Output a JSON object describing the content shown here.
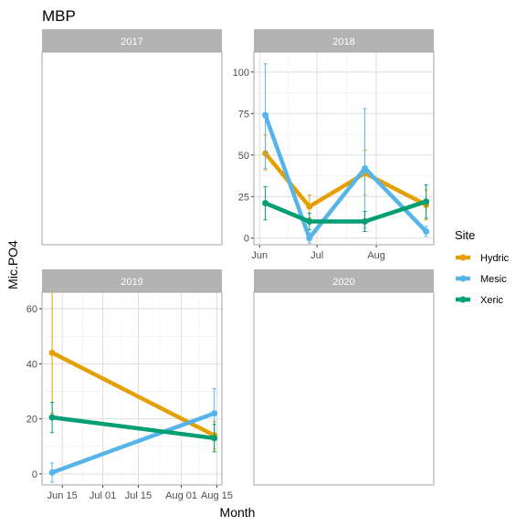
{
  "chart_data": {
    "type": "line",
    "title": "MBP",
    "xlabel": "Month",
    "ylabel": "Mic.PO4",
    "legend": {
      "title": "Site",
      "placement": "right",
      "entries": [
        {
          "name": "Hydric",
          "color": "#E69F00"
        },
        {
          "name": "Mesic",
          "color": "#56B4E9"
        },
        {
          "name": "Xeric",
          "color": "#009E73"
        }
      ]
    },
    "grid": true,
    "facets": [
      {
        "label": "2017",
        "has_axes": false,
        "series": []
      },
      {
        "label": "2018",
        "has_axes": true,
        "x_ticks": [
          {
            "label": "Jun",
            "date": "2018-06-01"
          },
          {
            "label": "Jul",
            "date": "2018-07-01"
          },
          {
            "label": "Aug",
            "date": "2018-08-01"
          }
        ],
        "xlim": [
          "2018-05-29",
          "2018-08-31"
        ],
        "y_ticks": [
          0,
          25,
          50,
          75,
          100
        ],
        "ylim": [
          -4,
          112
        ],
        "series": [
          {
            "name": "Hydric",
            "points": [
              {
                "date": "2018-06-04",
                "y": 51,
                "lo": 41,
                "hi": 62
              },
              {
                "date": "2018-06-27",
                "y": 19,
                "lo": 12,
                "hi": 26
              },
              {
                "date": "2018-07-26",
                "y": 39,
                "lo": 26,
                "hi": 53
              },
              {
                "date": "2018-08-27",
                "y": 20,
                "lo": 11,
                "hi": 29
              }
            ]
          },
          {
            "name": "Mesic",
            "points": [
              {
                "date": "2018-06-04",
                "y": 74,
                "lo": 42,
                "hi": 105
              },
              {
                "date": "2018-06-27",
                "y": 0,
                "lo": -3,
                "hi": 3
              },
              {
                "date": "2018-07-26",
                "y": 42,
                "lo": 6,
                "hi": 78
              },
              {
                "date": "2018-08-27",
                "y": 4,
                "lo": 1,
                "hi": 7
              }
            ]
          },
          {
            "name": "Xeric",
            "points": [
              {
                "date": "2018-06-04",
                "y": 21,
                "lo": 11,
                "hi": 31
              },
              {
                "date": "2018-06-27",
                "y": 10,
                "lo": 5,
                "hi": 15
              },
              {
                "date": "2018-07-26",
                "y": 10,
                "lo": 4,
                "hi": 16
              },
              {
                "date": "2018-08-27",
                "y": 22,
                "lo": 12,
                "hi": 32
              }
            ]
          }
        ]
      },
      {
        "label": "2019",
        "has_axes": true,
        "x_ticks": [
          {
            "label": "Jun 15",
            "date": "2019-06-15"
          },
          {
            "label": "Jul 01",
            "date": "2019-07-01"
          },
          {
            "label": "Jul 15",
            "date": "2019-07-15"
          },
          {
            "label": "Aug 01",
            "date": "2019-08-01"
          },
          {
            "label": "Aug 15",
            "date": "2019-08-15"
          }
        ],
        "xlim": [
          "2019-06-07",
          "2019-08-17"
        ],
        "y_ticks": [
          0,
          20,
          40,
          60
        ],
        "ylim": [
          -4,
          66
        ],
        "series": [
          {
            "name": "Hydric",
            "points": [
              {
                "date": "2019-06-11",
                "y": 44,
                "lo": 22,
                "hi": 66
              },
              {
                "date": "2019-08-14",
                "y": 14,
                "lo": 9,
                "hi": 19
              }
            ]
          },
          {
            "name": "Mesic",
            "points": [
              {
                "date": "2019-06-11",
                "y": 0.5,
                "lo": -3,
                "hi": 4
              },
              {
                "date": "2019-08-14",
                "y": 22,
                "lo": 13,
                "hi": 31
              }
            ]
          },
          {
            "name": "Xeric",
            "points": [
              {
                "date": "2019-06-11",
                "y": 20.5,
                "lo": 15,
                "hi": 26
              },
              {
                "date": "2019-08-14",
                "y": 13,
                "lo": 8,
                "hi": 18
              }
            ]
          }
        ]
      },
      {
        "label": "2020",
        "has_axes": false,
        "series": []
      }
    ]
  }
}
